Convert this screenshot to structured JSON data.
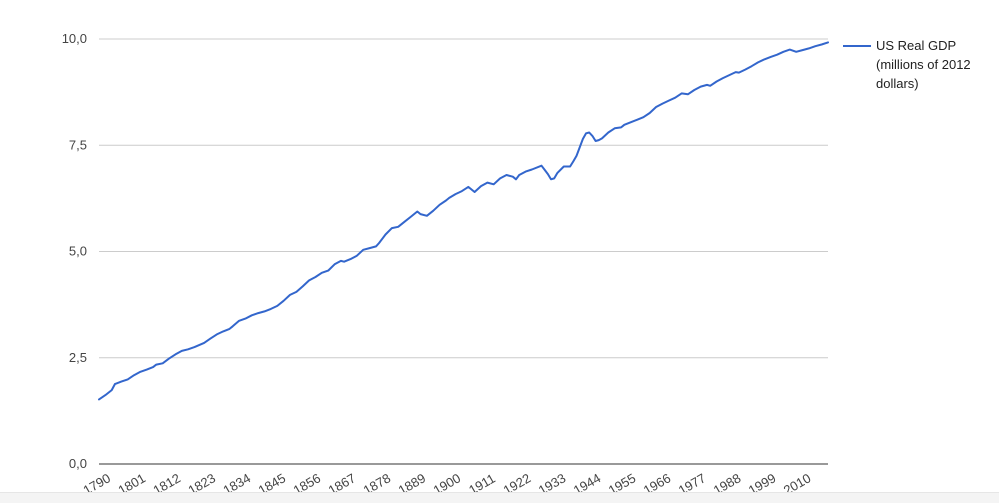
{
  "chart_data": {
    "type": "line",
    "series": [
      {
        "name": "US Real GDP (millions of 2012 dollars)",
        "color": "#3366cc",
        "points": [
          [
            1790,
            1.52
          ],
          [
            1792,
            1.62
          ],
          [
            1794,
            1.74
          ],
          [
            1795,
            1.88
          ],
          [
            1797,
            1.94
          ],
          [
            1799,
            1.99
          ],
          [
            1801,
            2.09
          ],
          [
            1803,
            2.17
          ],
          [
            1805,
            2.22
          ],
          [
            1807,
            2.28
          ],
          [
            1808,
            2.34
          ],
          [
            1810,
            2.37
          ],
          [
            1812,
            2.48
          ],
          [
            1814,
            2.58
          ],
          [
            1816,
            2.66
          ],
          [
            1818,
            2.7
          ],
          [
            1820,
            2.75
          ],
          [
            1823,
            2.85
          ],
          [
            1825,
            2.95
          ],
          [
            1827,
            3.05
          ],
          [
            1829,
            3.12
          ],
          [
            1831,
            3.18
          ],
          [
            1832,
            3.24
          ],
          [
            1834,
            3.37
          ],
          [
            1836,
            3.42
          ],
          [
            1838,
            3.5
          ],
          [
            1840,
            3.55
          ],
          [
            1842,
            3.59
          ],
          [
            1844,
            3.65
          ],
          [
            1846,
            3.72
          ],
          [
            1848,
            3.84
          ],
          [
            1850,
            3.98
          ],
          [
            1852,
            4.05
          ],
          [
            1854,
            4.18
          ],
          [
            1856,
            4.32
          ],
          [
            1858,
            4.4
          ],
          [
            1860,
            4.5
          ],
          [
            1862,
            4.55
          ],
          [
            1864,
            4.7
          ],
          [
            1866,
            4.78
          ],
          [
            1867,
            4.76
          ],
          [
            1869,
            4.82
          ],
          [
            1871,
            4.9
          ],
          [
            1873,
            5.04
          ],
          [
            1875,
            5.08
          ],
          [
            1877,
            5.12
          ],
          [
            1878,
            5.2
          ],
          [
            1880,
            5.4
          ],
          [
            1882,
            5.55
          ],
          [
            1884,
            5.58
          ],
          [
            1886,
            5.7
          ],
          [
            1888,
            5.82
          ],
          [
            1890,
            5.94
          ],
          [
            1891,
            5.88
          ],
          [
            1893,
            5.84
          ],
          [
            1895,
            5.96
          ],
          [
            1897,
            6.1
          ],
          [
            1899,
            6.2
          ],
          [
            1900,
            6.26
          ],
          [
            1902,
            6.35
          ],
          [
            1904,
            6.42
          ],
          [
            1906,
            6.52
          ],
          [
            1908,
            6.4
          ],
          [
            1910,
            6.54
          ],
          [
            1912,
            6.62
          ],
          [
            1914,
            6.58
          ],
          [
            1916,
            6.72
          ],
          [
            1918,
            6.8
          ],
          [
            1920,
            6.76
          ],
          [
            1921,
            6.7
          ],
          [
            1922,
            6.8
          ],
          [
            1924,
            6.88
          ],
          [
            1926,
            6.93
          ],
          [
            1929,
            7.02
          ],
          [
            1930,
            6.92
          ],
          [
            1931,
            6.82
          ],
          [
            1932,
            6.7
          ],
          [
            1933,
            6.72
          ],
          [
            1934,
            6.85
          ],
          [
            1936,
            7.0
          ],
          [
            1938,
            7.0
          ],
          [
            1939,
            7.12
          ],
          [
            1940,
            7.25
          ],
          [
            1941,
            7.45
          ],
          [
            1942,
            7.65
          ],
          [
            1943,
            7.78
          ],
          [
            1944,
            7.8
          ],
          [
            1945,
            7.72
          ],
          [
            1946,
            7.6
          ],
          [
            1947,
            7.62
          ],
          [
            1948,
            7.66
          ],
          [
            1950,
            7.8
          ],
          [
            1952,
            7.9
          ],
          [
            1954,
            7.92
          ],
          [
            1955,
            7.98
          ],
          [
            1957,
            8.04
          ],
          [
            1959,
            8.1
          ],
          [
            1961,
            8.16
          ],
          [
            1963,
            8.26
          ],
          [
            1965,
            8.4
          ],
          [
            1967,
            8.48
          ],
          [
            1969,
            8.55
          ],
          [
            1971,
            8.62
          ],
          [
            1973,
            8.72
          ],
          [
            1975,
            8.7
          ],
          [
            1977,
            8.8
          ],
          [
            1979,
            8.88
          ],
          [
            1981,
            8.92
          ],
          [
            1982,
            8.9
          ],
          [
            1984,
            9.0
          ],
          [
            1986,
            9.08
          ],
          [
            1988,
            9.15
          ],
          [
            1990,
            9.22
          ],
          [
            1991,
            9.21
          ],
          [
            1993,
            9.28
          ],
          [
            1995,
            9.36
          ],
          [
            1997,
            9.45
          ],
          [
            1999,
            9.52
          ],
          [
            2001,
            9.58
          ],
          [
            2003,
            9.63
          ],
          [
            2005,
            9.7
          ],
          [
            2007,
            9.75
          ],
          [
            2009,
            9.7
          ],
          [
            2011,
            9.74
          ],
          [
            2013,
            9.78
          ],
          [
            2015,
            9.83
          ],
          [
            2017,
            9.87
          ],
          [
            2019,
            9.92
          ]
        ]
      }
    ],
    "xlim": [
      1790,
      2019
    ],
    "ylim": [
      0,
      10
    ],
    "x_ticks": [
      "1790",
      "1801",
      "1812",
      "1823",
      "1834",
      "1845",
      "1856",
      "1867",
      "1878",
      "1889",
      "1900",
      "1911",
      "1922",
      "1933",
      "1944",
      "1955",
      "1966",
      "1977",
      "1988",
      "1999",
      "2010"
    ],
    "y_ticks": [
      {
        "value": 0,
        "label": "0,0"
      },
      {
        "value": 2.5,
        "label": "2,5"
      },
      {
        "value": 5,
        "label": "5,0"
      },
      {
        "value": 7.5,
        "label": "7,5"
      },
      {
        "value": 10,
        "label": "10,0"
      }
    ],
    "grid": true,
    "legend_position": "right",
    "title": "",
    "xlabel": "",
    "ylabel": ""
  },
  "colors": {
    "line": "#3366cc",
    "grid": "#cccccc",
    "axis": "#333333",
    "text": "#444444"
  }
}
